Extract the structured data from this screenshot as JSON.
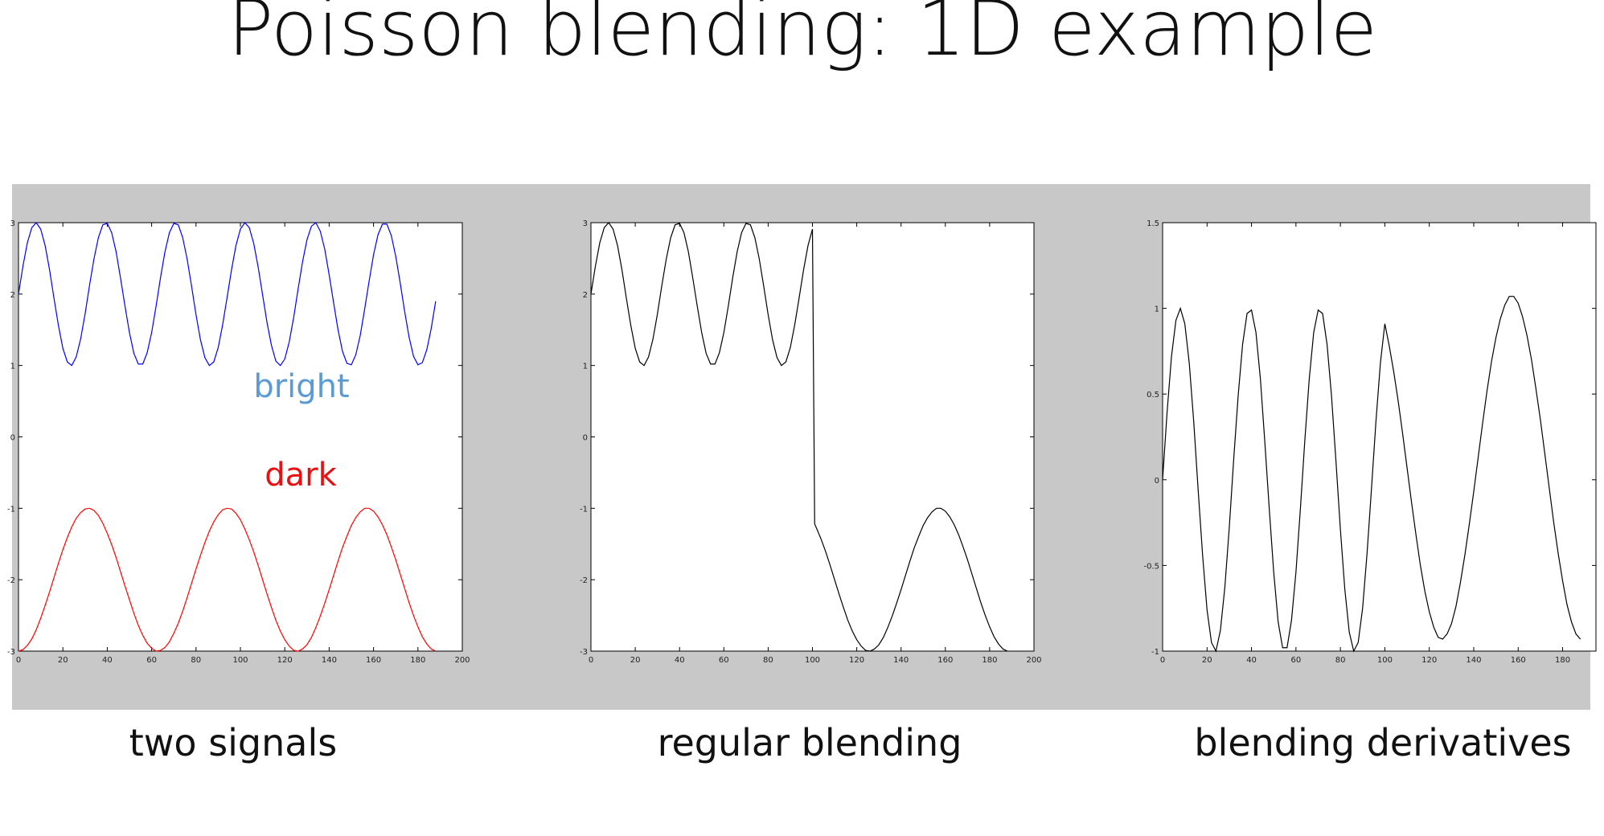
{
  "title": "Poisson blending: 1D example",
  "chart_data": [
    {
      "type": "line",
      "caption": "two signals",
      "x": [
        0,
        2,
        4,
        6,
        8,
        10,
        12,
        14,
        16,
        18,
        20,
        22,
        24,
        26,
        28,
        30,
        32,
        34,
        36,
        38,
        40,
        42,
        44,
        46,
        48,
        50,
        52,
        54,
        56,
        58,
        60,
        62,
        64,
        66,
        68,
        70,
        72,
        74,
        76,
        78,
        80,
        82,
        84,
        86,
        88,
        90,
        92,
        94,
        96,
        98,
        100,
        102,
        104,
        106,
        108,
        110,
        112,
        114,
        116,
        118,
        120,
        122,
        124,
        126,
        128,
        130,
        132,
        134,
        136,
        138,
        140,
        142,
        144,
        146,
        148,
        150,
        152,
        154,
        156,
        158,
        160,
        162,
        164,
        166,
        168,
        170,
        172,
        174,
        176,
        178,
        180,
        182,
        184,
        186,
        188
      ],
      "series": [
        {
          "name": "bright",
          "color": "#0000ff",
          "label_color": "#5b9bd5",
          "values": [
            2,
            2.39,
            2.72,
            2.93,
            3,
            2.91,
            2.68,
            2.34,
            1.94,
            1.56,
            1.24,
            1.05,
            1,
            1.12,
            1.37,
            1.72,
            2.12,
            2.49,
            2.79,
            2.97,
            2.99,
            2.86,
            2.59,
            2.22,
            1.83,
            1.46,
            1.17,
            1.02,
            1.02,
            1.18,
            1.46,
            1.83,
            2.23,
            2.59,
            2.86,
            2.99,
            2.97,
            2.79,
            2.49,
            2.11,
            1.71,
            1.36,
            1.11,
            1,
            1.05,
            1.25,
            1.57,
            1.95,
            2.34,
            2.68,
            2.91,
            3,
            2.93,
            2.71,
            2.38,
            1.99,
            1.6,
            1.28,
            1.06,
            1,
            1.09,
            1.33,
            1.67,
            2.07,
            2.45,
            2.76,
            2.95,
            3,
            2.88,
            2.63,
            2.27,
            1.88,
            1.5,
            1.2,
            1.03,
            1.01,
            1.15,
            1.42,
            1.79,
            2.18,
            2.55,
            2.83,
            2.98,
            2.98,
            2.82,
            2.53,
            2.16,
            1.76,
            1.4,
            1.13,
            1.01,
            1.04,
            1.22,
            1.52,
            1.9
          ]
        },
        {
          "name": "dark",
          "color": "#ff0000",
          "label_color": "#e81010",
          "values": [
            -3,
            -2.98,
            -2.92,
            -2.83,
            -2.7,
            -2.54,
            -2.36,
            -2.17,
            -1.97,
            -1.77,
            -1.58,
            -1.41,
            -1.26,
            -1.14,
            -1.06,
            -1.01,
            -1,
            -1.03,
            -1.1,
            -1.21,
            -1.35,
            -1.51,
            -1.69,
            -1.89,
            -2.09,
            -2.28,
            -2.47,
            -2.64,
            -2.78,
            -2.89,
            -2.96,
            -3,
            -2.99,
            -2.95,
            -2.87,
            -2.75,
            -2.61,
            -2.44,
            -2.25,
            -2.05,
            -1.85,
            -1.66,
            -1.48,
            -1.32,
            -1.19,
            -1.09,
            -1.02,
            -1,
            -1.01,
            -1.07,
            -1.16,
            -1.29,
            -1.44,
            -1.61,
            -1.8,
            -2,
            -2.2,
            -2.39,
            -2.57,
            -2.72,
            -2.84,
            -2.93,
            -2.99,
            -3,
            -2.97,
            -2.91,
            -2.81,
            -2.67,
            -2.51,
            -2.33,
            -2.14,
            -1.94,
            -1.74,
            -1.55,
            -1.39,
            -1.24,
            -1.13,
            -1.05,
            -1,
            -1,
            -1.04,
            -1.12,
            -1.23,
            -1.37,
            -1.54,
            -1.72,
            -1.92,
            -2.12,
            -2.32,
            -2.5,
            -2.66,
            -2.8,
            -2.9,
            -2.97,
            -3
          ]
        }
      ],
      "xlim": [
        0,
        200
      ],
      "xticks": [
        0,
        20,
        40,
        60,
        80,
        100,
        120,
        140,
        160,
        180,
        200
      ],
      "ylim": [
        -3,
        3
      ],
      "yticks": [
        -3,
        -2,
        -1,
        0,
        1,
        2,
        3
      ]
    },
    {
      "type": "line",
      "caption": "regular blending",
      "x": [
        0,
        2,
        4,
        6,
        8,
        10,
        12,
        14,
        16,
        18,
        20,
        22,
        24,
        26,
        28,
        30,
        32,
        34,
        36,
        38,
        40,
        42,
        44,
        46,
        48,
        50,
        52,
        54,
        56,
        58,
        60,
        62,
        64,
        66,
        68,
        70,
        72,
        74,
        76,
        78,
        80,
        82,
        84,
        86,
        88,
        90,
        92,
        94,
        96,
        98,
        100,
        101,
        102,
        104,
        106,
        108,
        110,
        112,
        114,
        116,
        118,
        120,
        122,
        124,
        126,
        128,
        130,
        132,
        134,
        136,
        138,
        140,
        142,
        144,
        146,
        148,
        150,
        152,
        154,
        156,
        158,
        160,
        162,
        164,
        166,
        168,
        170,
        172,
        174,
        176,
        178,
        180,
        182,
        184,
        186,
        188
      ],
      "series": [
        {
          "color": "#000000",
          "values": [
            2,
            2.39,
            2.72,
            2.93,
            3,
            2.91,
            2.68,
            2.34,
            1.94,
            1.56,
            1.24,
            1.05,
            1,
            1.12,
            1.37,
            1.72,
            2.12,
            2.49,
            2.79,
            2.97,
            2.99,
            2.86,
            2.59,
            2.22,
            1.83,
            1.46,
            1.17,
            1.02,
            1.02,
            1.18,
            1.46,
            1.83,
            2.23,
            2.59,
            2.86,
            2.99,
            2.97,
            2.79,
            2.49,
            2.11,
            1.71,
            1.36,
            1.11,
            1,
            1.05,
            1.25,
            1.57,
            1.95,
            2.34,
            2.68,
            2.91,
            -1.22,
            -1.29,
            -1.44,
            -1.61,
            -1.8,
            -2,
            -2.2,
            -2.39,
            -2.57,
            -2.72,
            -2.84,
            -2.93,
            -2.99,
            -3,
            -2.97,
            -2.91,
            -2.81,
            -2.67,
            -2.51,
            -2.33,
            -2.14,
            -1.94,
            -1.74,
            -1.55,
            -1.39,
            -1.24,
            -1.13,
            -1.05,
            -1,
            -1,
            -1.04,
            -1.12,
            -1.23,
            -1.37,
            -1.54,
            -1.72,
            -1.92,
            -2.12,
            -2.32,
            -2.5,
            -2.66,
            -2.8,
            -2.9,
            -2.97,
            -3
          ]
        }
      ],
      "xlim": [
        0,
        200
      ],
      "xticks": [
        0,
        20,
        40,
        60,
        80,
        100,
        120,
        140,
        160,
        180,
        200
      ],
      "ylim": [
        -3,
        3
      ],
      "yticks": [
        -3,
        -2,
        -1,
        0,
        1,
        2,
        3
      ]
    },
    {
      "type": "line",
      "caption": "blending derivatives",
      "x": [
        0,
        2,
        4,
        6,
        8,
        10,
        12,
        14,
        16,
        18,
        20,
        22,
        24,
        26,
        28,
        30,
        32,
        34,
        36,
        38,
        40,
        42,
        44,
        46,
        48,
        50,
        52,
        54,
        56,
        58,
        60,
        62,
        64,
        66,
        68,
        70,
        72,
        74,
        76,
        78,
        80,
        82,
        84,
        86,
        88,
        90,
        92,
        94,
        96,
        98,
        100,
        102,
        104,
        106,
        108,
        110,
        112,
        114,
        116,
        118,
        120,
        122,
        124,
        126,
        128,
        130,
        132,
        134,
        136,
        138,
        140,
        142,
        144,
        146,
        148,
        150,
        152,
        154,
        156,
        158,
        160,
        162,
        164,
        166,
        168,
        170,
        172,
        174,
        176,
        178,
        180,
        182,
        184,
        186,
        188
      ],
      "series": [
        {
          "color": "#000000",
          "values": [
            0,
            0.39,
            0.72,
            0.93,
            1,
            0.91,
            0.68,
            0.34,
            -0.06,
            -0.44,
            -0.76,
            -0.95,
            -1,
            -0.88,
            -0.63,
            -0.28,
            0.12,
            0.49,
            0.79,
            0.97,
            0.99,
            0.86,
            0.59,
            0.22,
            -0.17,
            -0.54,
            -0.83,
            -0.98,
            -0.98,
            -0.82,
            -0.54,
            -0.17,
            0.23,
            0.59,
            0.86,
            0.99,
            0.97,
            0.79,
            0.49,
            0.11,
            -0.29,
            -0.64,
            -0.89,
            -1,
            -0.95,
            -0.75,
            -0.43,
            -0.05,
            0.34,
            0.68,
            0.91,
            0.78,
            0.63,
            0.46,
            0.27,
            0.07,
            -0.13,
            -0.32,
            -0.5,
            -0.65,
            -0.77,
            -0.86,
            -0.92,
            -0.93,
            -0.9,
            -0.84,
            -0.74,
            -0.6,
            -0.44,
            -0.26,
            -0.07,
            0.13,
            0.33,
            0.52,
            0.69,
            0.83,
            0.94,
            1.02,
            1.07,
            1.07,
            1.03,
            0.95,
            0.84,
            0.7,
            0.53,
            0.35,
            0.15,
            -0.05,
            -0.25,
            -0.43,
            -0.59,
            -0.73,
            -0.83,
            -0.9,
            -0.93
          ]
        }
      ],
      "xlim": [
        0,
        195
      ],
      "xticks": [
        0,
        20,
        40,
        60,
        80,
        100,
        120,
        140,
        160,
        180
      ],
      "ylim": [
        -1,
        1.5
      ],
      "yticks": [
        -1,
        -0.5,
        0,
        0.5,
        1,
        1.5
      ]
    }
  ]
}
